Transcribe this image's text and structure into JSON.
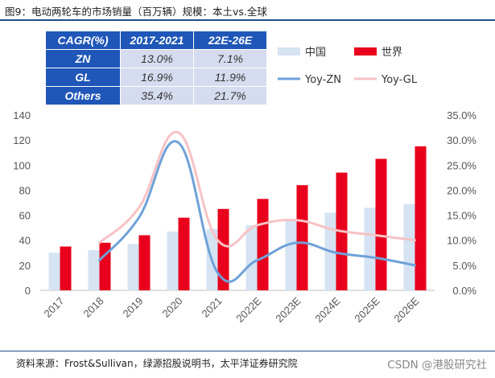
{
  "header": {
    "title": "图9：电动两轮车的市场销量（百万辆）规模：本土vs.全球"
  },
  "cagr_table": {
    "headers": [
      "CAGR(%)",
      "2017-2021",
      "22E-26E"
    ],
    "rows": [
      {
        "label": "ZN",
        "v1": "13.0%",
        "v2": "7.1%"
      },
      {
        "label": "GL",
        "v1": "16.9%",
        "v2": "11.9%"
      },
      {
        "label": "Others",
        "v1": "35.4%",
        "v2": "21.7%"
      }
    ]
  },
  "chart_data": {
    "type": "bar",
    "categories": [
      "2017",
      "2018",
      "2019",
      "2020",
      "2021",
      "2022E",
      "2023E",
      "2024E",
      "2025E",
      "2026E"
    ],
    "series": [
      {
        "name": "中国",
        "type": "bar",
        "axis": "left",
        "color": "#d5e3f3",
        "values": [
          30,
          32,
          37,
          47,
          49,
          52,
          57,
          62,
          66,
          69
        ]
      },
      {
        "name": "世界",
        "type": "bar",
        "axis": "left",
        "color": "#e8001c",
        "values": [
          35,
          38,
          44,
          58,
          65,
          73,
          84,
          94,
          105,
          115
        ]
      },
      {
        "name": "Yoy-ZN",
        "type": "line",
        "axis": "right",
        "color": "#6fa1d8",
        "values": [
          null,
          6.0,
          14.5,
          29.5,
          3.5,
          6.0,
          9.5,
          7.5,
          6.5,
          5.0
        ]
      },
      {
        "name": "Yoy-GL",
        "type": "line",
        "axis": "right",
        "color": "#f7c2c4",
        "values": [
          null,
          9.5,
          16.5,
          31.5,
          10.0,
          13.0,
          14.0,
          12.0,
          11.0,
          10.0
        ]
      }
    ],
    "y_left": {
      "min": 0,
      "max": 140,
      "step": 20,
      "ticks": [
        "0",
        "20",
        "40",
        "60",
        "80",
        "100",
        "120",
        "140"
      ]
    },
    "y_right": {
      "min": 0,
      "max": 35,
      "step": 5,
      "ticks": [
        "0.0%",
        "5.0%",
        "10.0%",
        "15.0%",
        "20.0%",
        "25.0%",
        "30.0%",
        "35.0%"
      ]
    },
    "legend": [
      {
        "label": "中国",
        "kind": "bar",
        "color": "#d5e3f3"
      },
      {
        "label": "世界",
        "kind": "bar",
        "color": "#e8001c"
      },
      {
        "label": "Yoy-ZN",
        "kind": "line",
        "color": "#6fa1d8"
      },
      {
        "label": "Yoy-GL",
        "kind": "line",
        "color": "#f7c2c4"
      }
    ],
    "legend_position": "top-right",
    "grid": false
  },
  "footer": {
    "source": "资料来源：Frost&Sullivan，绿源招股说明书，太平洋证券研究院",
    "watermark": "CSDN @港股研究社"
  }
}
